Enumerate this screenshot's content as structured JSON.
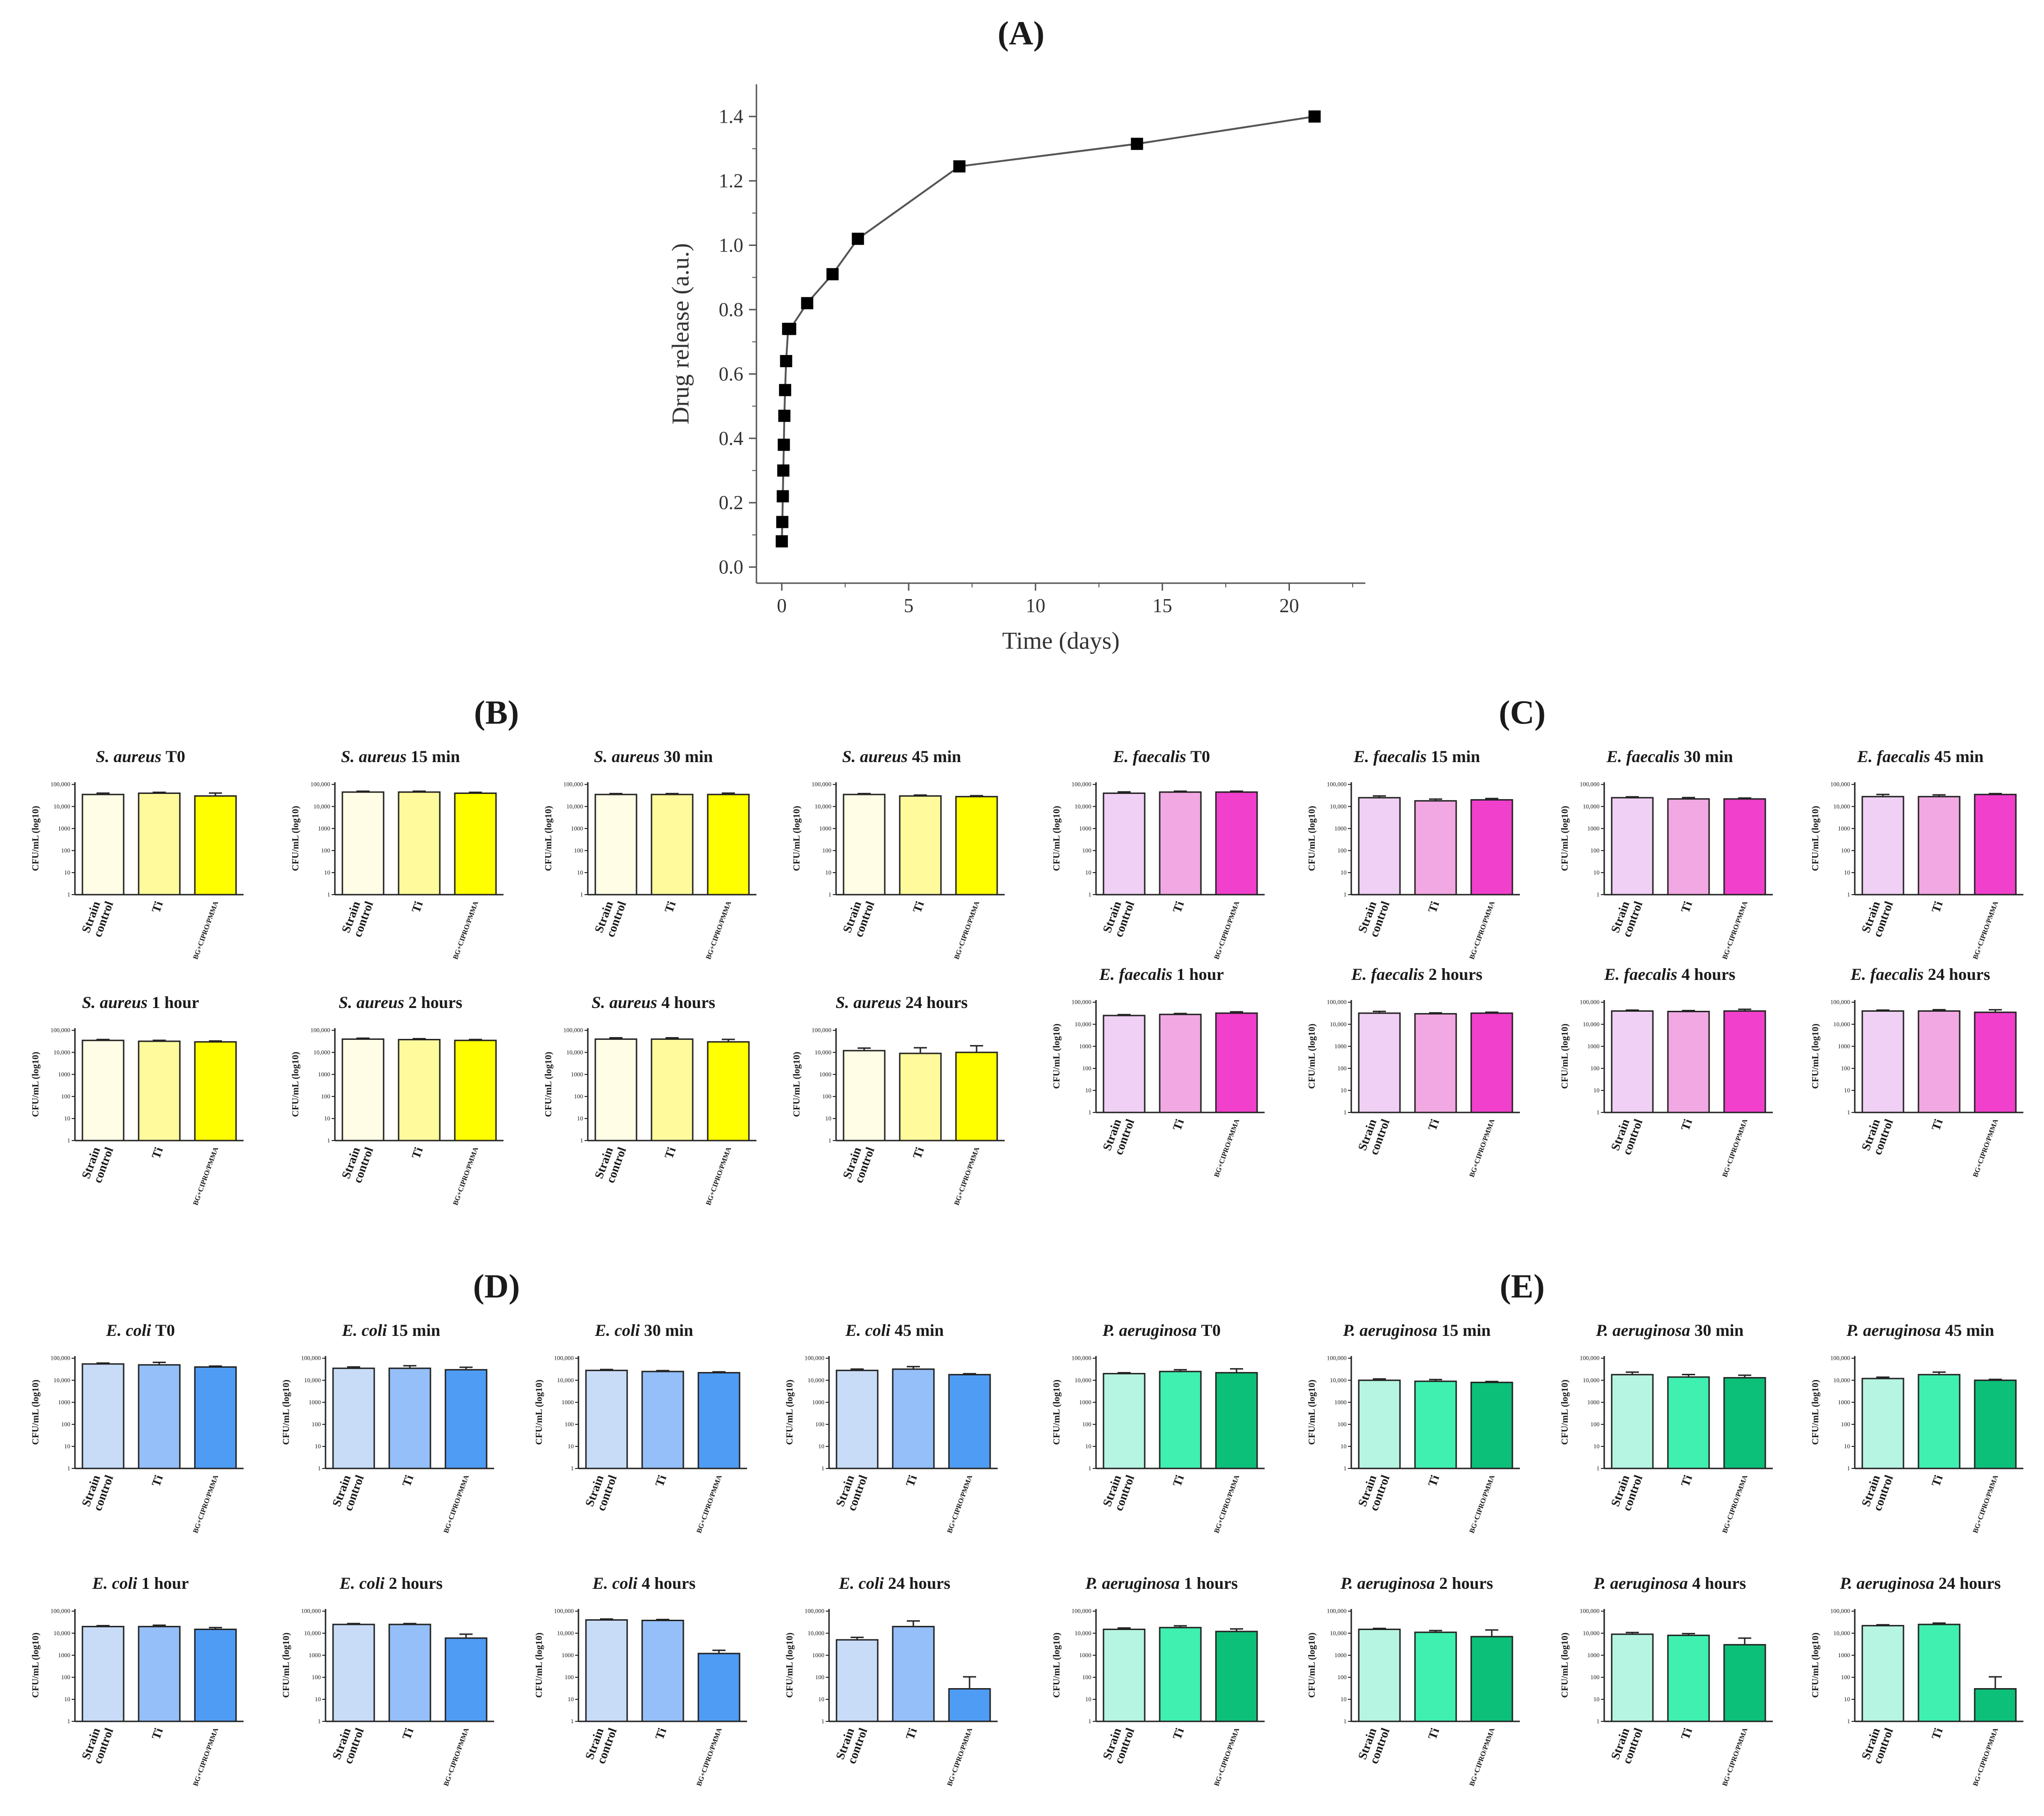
{
  "figure": {
    "panel_labels": [
      "(A)",
      "(B)",
      "(C)",
      "(D)",
      "(E)"
    ]
  },
  "chart_data": [
    {
      "id": "A",
      "type": "line",
      "title": "(A)",
      "xlabel": "Time (days)",
      "ylabel": "Drug release (a.u.)",
      "xlim": [
        -1,
        23
      ],
      "ylim": [
        -0.05,
        1.5
      ],
      "xticks": [
        0,
        5,
        10,
        15,
        20
      ],
      "yticks": [
        0.0,
        0.2,
        0.4,
        0.6,
        0.8,
        1.0,
        1.2,
        1.4
      ],
      "x": [
        0.0,
        0.02,
        0.04,
        0.06,
        0.08,
        0.1,
        0.13,
        0.17,
        0.25,
        0.33,
        1,
        2,
        3,
        7,
        14,
        21
      ],
      "y": [
        0.08,
        0.14,
        0.22,
        0.3,
        0.38,
        0.47,
        0.55,
        0.64,
        0.74,
        0.74,
        0.82,
        0.91,
        1.02,
        1.245,
        1.315,
        1.4
      ],
      "marker": "square",
      "color": "#000000"
    },
    {
      "group": "B",
      "type": "bar",
      "organism": "S. aureus",
      "colors": [
        "#fffde6",
        "#fffa9b",
        "#ffff00"
      ],
      "categories": [
        "Strain control",
        "Ti",
        "BG+CIPRO/PMMA"
      ],
      "ylabel": "CFU/mL (log10)",
      "yticks": [
        "100,000",
        "10,000",
        "1000",
        "100",
        "10",
        "1"
      ],
      "charts": [
        {
          "title_time": "T0",
          "values": [
            35000,
            40000,
            30000
          ],
          "errors": [
            1.15,
            1.1,
            1.35
          ]
        },
        {
          "title_time": "15 min",
          "values": [
            45000,
            45000,
            40000
          ],
          "errors": [
            1.1,
            1.1,
            1.1
          ]
        },
        {
          "title_time": "30 min",
          "values": [
            35000,
            35000,
            35000
          ],
          "errors": [
            1.1,
            1.1,
            1.15
          ]
        },
        {
          "title_time": "45 min",
          "values": [
            35000,
            30000,
            28000
          ],
          "errors": [
            1.1,
            1.1,
            1.1
          ]
        },
        {
          "title_time": "1 hour",
          "values": [
            35000,
            32000,
            30000
          ],
          "errors": [
            1.1,
            1.1,
            1.1
          ]
        },
        {
          "title_time": "2 hours",
          "values": [
            40000,
            38000,
            35000
          ],
          "errors": [
            1.1,
            1.1,
            1.1
          ]
        },
        {
          "title_time": "4 hours",
          "values": [
            40000,
            40000,
            30000
          ],
          "errors": [
            1.15,
            1.15,
            1.3
          ]
        },
        {
          "title_time": "24 hours",
          "values": [
            12000,
            9000,
            10000
          ],
          "errors": [
            1.3,
            1.8,
            2.0
          ]
        }
      ]
    },
    {
      "group": "C",
      "type": "bar",
      "organism": "E. faecalis",
      "colors": [
        "#f0d0f4",
        "#f2a8e2",
        "#f040cc"
      ],
      "categories": [
        "Strain control",
        "Ti",
        "BG+CIPRO/PMMA"
      ],
      "ylabel": "CFU/mL (log10)",
      "yticks": [
        "100,000",
        "10,000",
        "1000",
        "100",
        "10",
        "1"
      ],
      "charts": [
        {
          "title_time": "T0",
          "values": [
            40000,
            45000,
            45000
          ],
          "errors": [
            1.15,
            1.1,
            1.1
          ]
        },
        {
          "title_time": "15 min",
          "values": [
            25000,
            18000,
            20000
          ],
          "errors": [
            1.2,
            1.2,
            1.15
          ]
        },
        {
          "title_time": "30 min",
          "values": [
            25000,
            22000,
            22000
          ],
          "errors": [
            1.1,
            1.15,
            1.1
          ]
        },
        {
          "title_time": "45 min",
          "values": [
            28000,
            28000,
            35000
          ],
          "errors": [
            1.25,
            1.2,
            1.1
          ]
        },
        {
          "title_time": "1 hour",
          "values": [
            25000,
            28000,
            32000
          ],
          "errors": [
            1.1,
            1.1,
            1.15
          ]
        },
        {
          "title_time": "2 hours",
          "values": [
            32000,
            30000,
            32000
          ],
          "errors": [
            1.2,
            1.1,
            1.1
          ]
        },
        {
          "title_time": "4 hours",
          "values": [
            40000,
            38000,
            40000
          ],
          "errors": [
            1.1,
            1.1,
            1.2
          ]
        },
        {
          "title_time": "24 hours",
          "values": [
            40000,
            40000,
            35000
          ],
          "errors": [
            1.1,
            1.15,
            1.3
          ]
        }
      ]
    },
    {
      "group": "D",
      "type": "bar",
      "organism": "E. coli",
      "colors": [
        "#c8dcf8",
        "#94bff8",
        "#4f9cf5"
      ],
      "categories": [
        "Strain control",
        "Ti",
        "BG+CIPRO/PMMA"
      ],
      "ylabel": "CFU/mL (log10)",
      "yticks": [
        "100,000",
        "10,000",
        "1000",
        "100",
        "10",
        "1"
      ],
      "charts": [
        {
          "title_time": "T0",
          "values": [
            55000,
            50000,
            40000
          ],
          "errors": [
            1.1,
            1.3,
            1.1
          ]
        },
        {
          "title_time": "15 min",
          "values": [
            35000,
            35000,
            30000
          ],
          "errors": [
            1.15,
            1.3,
            1.3
          ]
        },
        {
          "title_time": "30 min",
          "values": [
            28000,
            25000,
            22000
          ],
          "errors": [
            1.1,
            1.1,
            1.1
          ]
        },
        {
          "title_time": "45 min",
          "values": [
            28000,
            32000,
            18000
          ],
          "errors": [
            1.15,
            1.3,
            1.1
          ]
        },
        {
          "title_time": "1 hour",
          "values": [
            20000,
            20000,
            15000
          ],
          "errors": [
            1.1,
            1.15,
            1.2
          ]
        },
        {
          "title_time": "2 hours",
          "values": [
            25000,
            25000,
            6000
          ],
          "errors": [
            1.1,
            1.1,
            1.5
          ]
        },
        {
          "title_time": "4 hours",
          "values": [
            40000,
            38000,
            1200
          ],
          "errors": [
            1.1,
            1.1,
            1.4
          ]
        },
        {
          "title_time": "24 hours",
          "values": [
            5000,
            20000,
            30
          ],
          "errors": [
            1.3,
            1.8,
            3.5
          ]
        }
      ]
    },
    {
      "group": "E",
      "type": "bar",
      "organism": "P. aeruginosa",
      "colors": [
        "#b5f5e2",
        "#3ff0b0",
        "#0dc07a"
      ],
      "categories": [
        "Strain control",
        "Ti",
        "BG+CIPRO/PMMA"
      ],
      "ylabel": "CFU/mL (log10)",
      "yticks": [
        "100,000",
        "10,000",
        "1000",
        "100",
        "10",
        "1"
      ],
      "charts": [
        {
          "title_time": "T0",
          "values": [
            20000,
            25000,
            22000
          ],
          "errors": [
            1.1,
            1.2,
            1.5
          ]
        },
        {
          "title_time": "15 min",
          "values": [
            10000,
            9000,
            8000
          ],
          "errors": [
            1.15,
            1.2,
            1.1
          ]
        },
        {
          "title_time": "30 min",
          "values": [
            18000,
            14000,
            13000
          ],
          "errors": [
            1.3,
            1.3,
            1.3
          ]
        },
        {
          "title_time": "45 min",
          "values": [
            12000,
            18000,
            10000
          ],
          "errors": [
            1.15,
            1.3,
            1.1
          ]
        },
        {
          "title_time": "1 hours",
          "values": [
            15000,
            18000,
            12000
          ],
          "errors": [
            1.15,
            1.2,
            1.3
          ]
        },
        {
          "title_time": "2 hours",
          "values": [
            15000,
            11000,
            7000
          ],
          "errors": [
            1.1,
            1.2,
            2.0
          ]
        },
        {
          "title_time": "4 hours",
          "values": [
            9000,
            8000,
            3000
          ],
          "errors": [
            1.2,
            1.2,
            2.0
          ]
        },
        {
          "title_time": "24 hours",
          "values": [
            22000,
            25000,
            30
          ],
          "errors": [
            1.1,
            1.15,
            3.5
          ]
        }
      ]
    }
  ]
}
